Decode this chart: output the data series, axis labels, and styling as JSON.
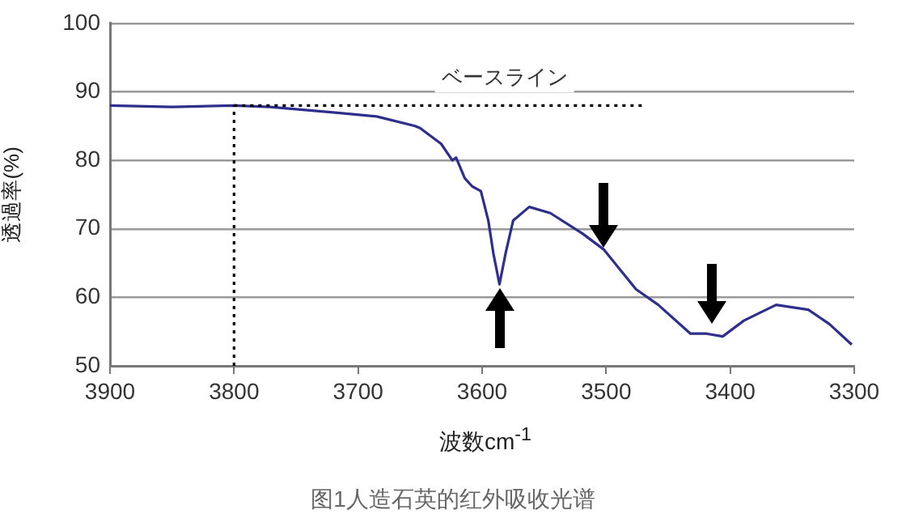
{
  "chart_data": {
    "type": "line",
    "xlabel": "波数cm$^{-1}$",
    "ylabel": "透過率(%)",
    "x": [
      3900,
      3850,
      3800,
      3771,
      3720,
      3685,
      3654,
      3650,
      3633,
      3624,
      3621,
      3614,
      3608,
      3601,
      3595,
      3591,
      3586,
      3581,
      3575,
      3562,
      3545,
      3519,
      3502,
      3476,
      3458,
      3432,
      3419,
      3406,
      3389,
      3363,
      3337,
      3320,
      3302
    ],
    "series": [
      {
        "color": "#2e2e8c",
        "values": [
          88,
          87.8,
          88,
          87.8,
          87,
          86.4,
          85,
          84.7,
          82.4,
          80,
          80.4,
          77.4,
          76.2,
          75.5,
          71.2,
          66.5,
          61.9,
          66.5,
          71.2,
          73.2,
          72.3,
          69.3,
          67,
          61.2,
          58.9,
          54.7,
          54.7,
          54.3,
          56.6,
          58.9,
          58.2,
          56.1,
          53.1
        ]
      }
    ],
    "xlim": [
      3900,
      3300
    ],
    "xticks": [
      3900,
      3800,
      3700,
      3600,
      3500,
      3400,
      3300
    ],
    "ylim": [
      50,
      100
    ],
    "yticks": [
      50,
      60,
      70,
      80,
      90,
      100
    ],
    "grid": "y",
    "marker": "none",
    "line_style": "solid",
    "ref_lines": [
      {
        "axis": "y",
        "value": 88,
        "label": "ベースライン",
        "line_style": "dotted",
        "color": "#000000"
      },
      {
        "axis": "x",
        "value": 3800,
        "line_style": "dotted",
        "color": "#000000"
      }
    ],
    "annotations": [
      "图1人造石英的红外吸收光谱"
    ]
  }
}
